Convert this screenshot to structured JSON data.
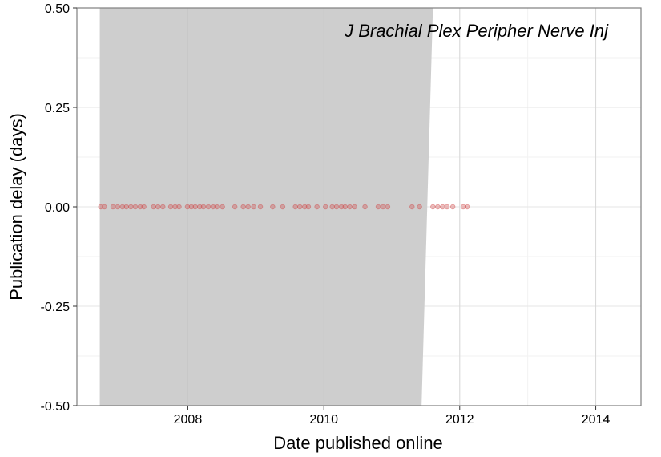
{
  "chart_data": {
    "type": "scatter",
    "title": "",
    "annotation": "J Brachial Plex Peripher Nerve Inj",
    "xlabel": "Date published online",
    "ylabel": "Publication delay (days)",
    "xlim": [
      "2006-05-15",
      "2014-09-01"
    ],
    "ylim": [
      -0.5,
      0.5
    ],
    "x_ticks": [
      "2008-01-01",
      "2010-01-01",
      "2012-01-01",
      "2014-01-01"
    ],
    "x_tick_labels": [
      "2008",
      "2010",
      "2012",
      "2014"
    ],
    "y_ticks": [
      -0.5,
      -0.25,
      0.0,
      0.25,
      0.5
    ],
    "y_tick_labels": [
      "-0.50",
      "-0.25",
      "0.00",
      "0.25",
      "0.50"
    ],
    "grid": true,
    "point_color": "#d04a4a",
    "band_color": "#cbcbcb",
    "confidence_band": {
      "x": [
        "2006-09-15",
        "2011-07-20"
      ],
      "upper": [
        0.5,
        0.5
      ],
      "lower": [
        -0.5,
        -0.5
      ],
      "top_end": "2011-08-10",
      "bottom_end": "2011-06-10"
    },
    "points": [
      {
        "x": "2006-09-20",
        "y": 0
      },
      {
        "x": "2006-10-10",
        "y": 0
      },
      {
        "x": "2006-11-25",
        "y": 0
      },
      {
        "x": "2006-12-20",
        "y": 0
      },
      {
        "x": "2007-01-15",
        "y": 0
      },
      {
        "x": "2007-02-05",
        "y": 0
      },
      {
        "x": "2007-03-01",
        "y": 0
      },
      {
        "x": "2007-03-25",
        "y": 0
      },
      {
        "x": "2007-04-20",
        "y": 0
      },
      {
        "x": "2007-05-10",
        "y": 0
      },
      {
        "x": "2007-07-01",
        "y": 0
      },
      {
        "x": "2007-07-25",
        "y": 0
      },
      {
        "x": "2007-08-20",
        "y": 0
      },
      {
        "x": "2007-10-01",
        "y": 0
      },
      {
        "x": "2007-10-25",
        "y": 0
      },
      {
        "x": "2007-11-15",
        "y": 0
      },
      {
        "x": "2007-12-30",
        "y": 0
      },
      {
        "x": "2008-01-20",
        "y": 0
      },
      {
        "x": "2008-02-10",
        "y": 0
      },
      {
        "x": "2008-03-05",
        "y": 0
      },
      {
        "x": "2008-03-25",
        "y": 0
      },
      {
        "x": "2008-04-20",
        "y": 0
      },
      {
        "x": "2008-05-15",
        "y": 0
      },
      {
        "x": "2008-06-05",
        "y": 0
      },
      {
        "x": "2008-07-05",
        "y": 0
      },
      {
        "x": "2008-09-10",
        "y": 0
      },
      {
        "x": "2008-10-25",
        "y": 0
      },
      {
        "x": "2008-11-20",
        "y": 0
      },
      {
        "x": "2008-12-20",
        "y": 0
      },
      {
        "x": "2009-01-25",
        "y": 0
      },
      {
        "x": "2009-04-01",
        "y": 0
      },
      {
        "x": "2009-05-25",
        "y": 0
      },
      {
        "x": "2009-08-01",
        "y": 0
      },
      {
        "x": "2009-08-25",
        "y": 0
      },
      {
        "x": "2009-09-20",
        "y": 0
      },
      {
        "x": "2009-10-10",
        "y": 0
      },
      {
        "x": "2009-11-25",
        "y": 0
      },
      {
        "x": "2010-01-10",
        "y": 0
      },
      {
        "x": "2010-02-15",
        "y": 0
      },
      {
        "x": "2010-03-10",
        "y": 0
      },
      {
        "x": "2010-04-05",
        "y": 0
      },
      {
        "x": "2010-04-25",
        "y": 0
      },
      {
        "x": "2010-05-20",
        "y": 0
      },
      {
        "x": "2010-06-15",
        "y": 0
      },
      {
        "x": "2010-08-10",
        "y": 0
      },
      {
        "x": "2010-10-20",
        "y": 0
      },
      {
        "x": "2010-11-15",
        "y": 0
      },
      {
        "x": "2010-12-10",
        "y": 0
      },
      {
        "x": "2011-04-20",
        "y": 0
      },
      {
        "x": "2011-05-30",
        "y": 0
      },
      {
        "x": "2011-08-10",
        "y": 0
      },
      {
        "x": "2011-09-05",
        "y": 0
      },
      {
        "x": "2011-10-01",
        "y": 0
      },
      {
        "x": "2011-10-25",
        "y": 0
      },
      {
        "x": "2011-11-25",
        "y": 0
      },
      {
        "x": "2012-01-20",
        "y": 0
      },
      {
        "x": "2012-02-10",
        "y": 0
      }
    ]
  }
}
